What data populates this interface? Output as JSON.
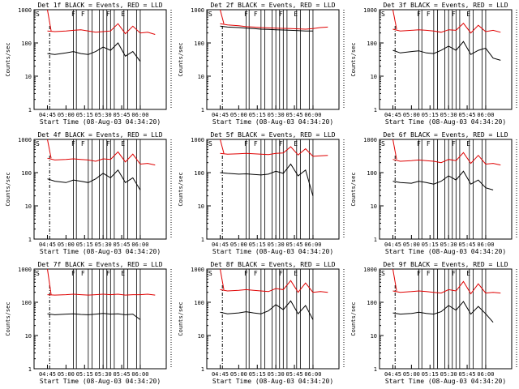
{
  "figure": {
    "colors": {
      "events": "#000000",
      "lld": "#e00000",
      "axis": "#000000"
    }
  },
  "chart_data": [
    {
      "type": "line",
      "title": "Det 1f BLACK = Events, RED = LLD",
      "xlabel": "Start Time (08-Aug-03 04:34:20)",
      "ylabel": "Counts/sec",
      "x_ticks": [
        "04:45",
        "05:00",
        "05:15",
        "05:30",
        "05:45",
        "06:00"
      ],
      "y_ticks": [
        "1",
        "10",
        "100",
        "1000"
      ],
      "y_scale": "log",
      "ylim": [
        1,
        1000
      ],
      "markers": [
        "S",
        "F",
        "F",
        "F",
        "E"
      ],
      "x": [
        4.75,
        4.85,
        5.0,
        5.1,
        5.2,
        5.3,
        5.4,
        5.5,
        5.6,
        5.7,
        5.8,
        5.9,
        6.0,
        6.1,
        6.2
      ],
      "series": [
        {
          "name": "Events",
          "values": [
            48,
            45,
            50,
            55,
            48,
            45,
            55,
            75,
            60,
            100,
            40,
            55,
            28,
            0,
            0
          ]
        },
        {
          "name": "LLD",
          "values": [
            230,
            220,
            230,
            240,
            250,
            230,
            210,
            220,
            230,
            380,
            190,
            320,
            200,
            210,
            180
          ]
        }
      ]
    },
    {
      "type": "line",
      "title": "Det 2f BLACK = Events, RED = LLD",
      "xlabel": "Start Time (08-Aug-03 04:34:20)",
      "ylabel": "Counts/sec",
      "x_ticks": [
        "04:45",
        "05:00",
        "05:15",
        "05:30",
        "05:45",
        "06:00"
      ],
      "y_ticks": [
        "1",
        "10",
        "100",
        "1000"
      ],
      "y_scale": "log",
      "ylim": [
        1,
        1000
      ],
      "markers": [
        "S",
        "F",
        "F",
        "F",
        "E"
      ],
      "x": [
        4.75,
        4.85,
        5.0,
        5.1,
        5.2,
        5.3,
        5.4,
        5.5,
        5.6,
        5.7,
        5.8,
        5.9,
        6.0,
        6.1,
        6.2
      ],
      "series": [
        {
          "name": "Events",
          "values": [
            320,
            300,
            290,
            280,
            270,
            260,
            255,
            250,
            245,
            240,
            235,
            230,
            230,
            0,
            0
          ]
        },
        {
          "name": "LLD",
          "values": [
            380,
            350,
            330,
            310,
            300,
            290,
            285,
            280,
            275,
            270,
            265,
            260,
            270,
            290,
            300
          ]
        }
      ]
    },
    {
      "type": "line",
      "title": "Det 3f BLACK = Events, RED = LLD",
      "xlabel": "Start Time (08-Aug-03 04:34:20)",
      "ylabel": "Counts/sec",
      "x_ticks": [
        "04:45",
        "05:00",
        "05:15",
        "05:30",
        "05:45",
        "06:00"
      ],
      "y_ticks": [
        "1",
        "10",
        "100",
        "1000"
      ],
      "y_scale": "log",
      "ylim": [
        1,
        1000
      ],
      "markers": [
        "S",
        "F",
        "F",
        "F",
        "E"
      ],
      "x": [
        4.75,
        4.85,
        5.0,
        5.1,
        5.2,
        5.3,
        5.4,
        5.5,
        5.6,
        5.7,
        5.8,
        5.9,
        6.0,
        6.1,
        6.2
      ],
      "series": [
        {
          "name": "Events",
          "values": [
            60,
            50,
            55,
            58,
            50,
            48,
            60,
            80,
            60,
            110,
            45,
            60,
            70,
            35,
            30
          ]
        },
        {
          "name": "LLD",
          "values": [
            260,
            230,
            240,
            250,
            240,
            230,
            210,
            250,
            240,
            390,
            200,
            340,
            220,
            240,
            210
          ]
        }
      ]
    },
    {
      "type": "line",
      "title": "Det 4f BLACK = Events, RED = LLD",
      "xlabel": "Start Time (08-Aug-03 04:34:20)",
      "ylabel": "Counts/sec",
      "x_ticks": [
        "04:45",
        "05:00",
        "05:15",
        "05:30",
        "05:45",
        "06:00"
      ],
      "y_ticks": [
        "1",
        "10",
        "100",
        "1000"
      ],
      "y_scale": "log",
      "ylim": [
        1,
        1000
      ],
      "markers": [
        "S",
        "F",
        "F",
        "F",
        "E"
      ],
      "x": [
        4.75,
        4.85,
        5.0,
        5.1,
        5.2,
        5.3,
        5.4,
        5.5,
        5.6,
        5.7,
        5.8,
        5.9,
        6.0,
        6.1,
        6.2
      ],
      "series": [
        {
          "name": "Events",
          "values": [
            65,
            55,
            50,
            60,
            55,
            50,
            65,
            95,
            70,
            120,
            50,
            70,
            30,
            0,
            0
          ]
        },
        {
          "name": "LLD",
          "values": [
            270,
            240,
            250,
            260,
            250,
            240,
            220,
            260,
            250,
            420,
            210,
            360,
            180,
            190,
            170
          ]
        }
      ]
    },
    {
      "type": "line",
      "title": "Det 5f BLACK = Events, RED = LLD",
      "xlabel": "Start Time (08-Aug-03 04:34:20)",
      "ylabel": "Counts/sec",
      "x_ticks": [
        "04:45",
        "05:00",
        "05:15",
        "05:30",
        "05:45",
        "06:00"
      ],
      "y_ticks": [
        "1",
        "10",
        "100",
        "1000"
      ],
      "y_scale": "log",
      "ylim": [
        1,
        1000
      ],
      "markers": [
        "S",
        "F",
        "F",
        "F",
        "E"
      ],
      "x": [
        4.75,
        4.85,
        5.0,
        5.1,
        5.2,
        5.3,
        5.4,
        5.5,
        5.6,
        5.7,
        5.8,
        5.9,
        6.0,
        6.1,
        6.2
      ],
      "series": [
        {
          "name": "Events",
          "values": [
            100,
            95,
            90,
            92,
            88,
            85,
            90,
            110,
            95,
            180,
            80,
            120,
            20,
            0,
            0
          ]
        },
        {
          "name": "LLD",
          "values": [
            380,
            360,
            370,
            380,
            370,
            360,
            350,
            380,
            390,
            600,
            340,
            520,
            310,
            320,
            330
          ]
        }
      ]
    },
    {
      "type": "line",
      "title": "Det 6f BLACK = Events, RED = LLD",
      "xlabel": "Start Time (08-Aug-03 04:34:20)",
      "ylabel": "Counts/sec",
      "x_ticks": [
        "04:45",
        "05:00",
        "05:15",
        "05:30",
        "05:45",
        "06:00"
      ],
      "y_ticks": [
        "1",
        "10",
        "100",
        "1000"
      ],
      "y_scale": "log",
      "ylim": [
        1,
        1000
      ],
      "markers": [
        "S",
        "F",
        "F",
        "F",
        "E"
      ],
      "x": [
        4.75,
        4.85,
        5.0,
        5.1,
        5.2,
        5.3,
        5.4,
        5.5,
        5.6,
        5.7,
        5.8,
        5.9,
        6.0,
        6.1,
        6.2
      ],
      "series": [
        {
          "name": "Events",
          "values": [
            55,
            50,
            48,
            55,
            50,
            45,
            55,
            80,
            60,
            110,
            45,
            60,
            35,
            30,
            0
          ]
        },
        {
          "name": "LLD",
          "values": [
            250,
            220,
            230,
            240,
            230,
            220,
            200,
            250,
            230,
            400,
            190,
            330,
            180,
            190,
            170
          ]
        }
      ]
    },
    {
      "type": "line",
      "title": "Det 7f BLACK = Events, RED = LLD",
      "xlabel": "Start Time (08-Aug-03 04:34:20)",
      "ylabel": "Counts/sec",
      "x_ticks": [
        "04:45",
        "05:00",
        "05:15",
        "05:30",
        "05:45",
        "06:00"
      ],
      "y_ticks": [
        "1",
        "10",
        "100",
        "1000"
      ],
      "y_scale": "log",
      "ylim": [
        1,
        1000
      ],
      "markers": [
        "S",
        "F",
        "F",
        "F",
        "E"
      ],
      "x": [
        4.75,
        4.85,
        5.0,
        5.1,
        5.2,
        5.3,
        5.4,
        5.5,
        5.6,
        5.7,
        5.8,
        5.9,
        6.0,
        6.1,
        6.2
      ],
      "series": [
        {
          "name": "Events",
          "values": [
            45,
            42,
            44,
            45,
            43,
            42,
            44,
            46,
            44,
            45,
            42,
            44,
            30,
            0,
            0
          ]
        },
        {
          "name": "LLD",
          "values": [
            170,
            165,
            170,
            175,
            170,
            165,
            170,
            175,
            170,
            175,
            165,
            170,
            170,
            175,
            165
          ]
        }
      ]
    },
    {
      "type": "line",
      "title": "Det 8f BLACK = Events, RED = LLD",
      "xlabel": "Start Time (08-Aug-03 04:34:20)",
      "ylabel": "Counts/sec",
      "x_ticks": [
        "04:45",
        "05:00",
        "05:15",
        "05:30",
        "05:45",
        "06:00"
      ],
      "y_ticks": [
        "1",
        "10",
        "100",
        "1000"
      ],
      "y_scale": "log",
      "ylim": [
        1,
        1000
      ],
      "markers": [
        "S",
        "F",
        "F",
        "F",
        "E"
      ],
      "x": [
        4.75,
        4.85,
        5.0,
        5.1,
        5.2,
        5.3,
        5.4,
        5.5,
        5.6,
        5.7,
        5.8,
        5.9,
        6.0,
        6.1,
        6.2
      ],
      "series": [
        {
          "name": "Events",
          "values": [
            50,
            45,
            48,
            52,
            48,
            45,
            55,
            85,
            60,
            110,
            45,
            80,
            30,
            0,
            0
          ]
        },
        {
          "name": "LLD",
          "values": [
            240,
            220,
            230,
            240,
            230,
            220,
            210,
            260,
            240,
            450,
            200,
            380,
            200,
            210,
            200
          ]
        }
      ]
    },
    {
      "type": "line",
      "title": "Det 9f BLACK = Events, RED = LLD",
      "xlabel": "Start Time (08-Aug-03 04:34:20)",
      "ylabel": "Counts/sec",
      "x_ticks": [
        "04:45",
        "05:00",
        "05:15",
        "05:30",
        "05:45",
        "06:00"
      ],
      "y_ticks": [
        "1",
        "10",
        "100",
        "1000"
      ],
      "y_scale": "log",
      "ylim": [
        1,
        1000
      ],
      "markers": [
        "S",
        "F",
        "F",
        "F",
        "E"
      ],
      "x": [
        4.75,
        4.85,
        5.0,
        5.1,
        5.2,
        5.3,
        5.4,
        5.5,
        5.6,
        5.7,
        5.8,
        5.9,
        6.0,
        6.1,
        6.2
      ],
      "series": [
        {
          "name": "Events",
          "values": [
            48,
            44,
            46,
            50,
            46,
            44,
            52,
            80,
            58,
            105,
            44,
            75,
            45,
            25,
            0
          ]
        },
        {
          "name": "LLD",
          "values": [
            220,
            200,
            210,
            220,
            210,
            200,
            190,
            240,
            220,
            420,
            180,
            360,
            190,
            200,
            190
          ]
        }
      ]
    }
  ]
}
